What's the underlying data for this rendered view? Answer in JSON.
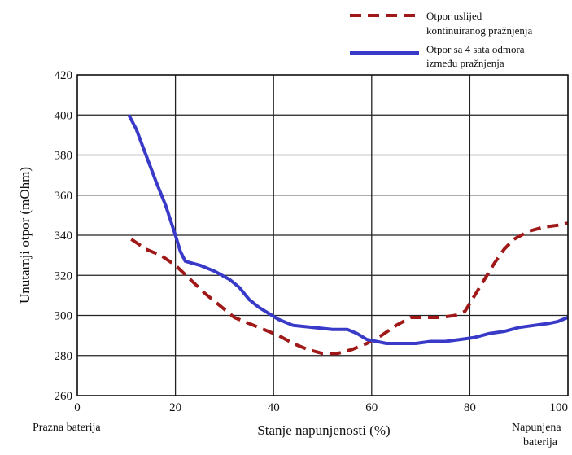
{
  "chart_data": {
    "type": "line",
    "title": "",
    "xlabel": "Stanje napunjenosti (%)",
    "ylabel": "Unutarnji otpor (mOhm)",
    "xlim": [
      0,
      100
    ],
    "ylim": [
      260,
      420
    ],
    "xticks": [
      0,
      20,
      40,
      60,
      80,
      100
    ],
    "yticks": [
      260,
      280,
      300,
      320,
      340,
      360,
      380,
      400,
      420
    ],
    "grid": true,
    "legend_position": "top-right",
    "x_end_labels": {
      "left": "Prazna baterija",
      "right_line1": "Napunjena",
      "right_line2": "baterija"
    },
    "series": [
      {
        "name_line1": "Otpor uslijed",
        "name_line2": "kontinuiranog pražnjenja",
        "style": "dashed",
        "color": "#a01818",
        "points": [
          [
            11,
            338
          ],
          [
            14,
            333
          ],
          [
            17,
            330
          ],
          [
            20,
            325
          ],
          [
            23,
            318
          ],
          [
            26,
            311
          ],
          [
            29,
            305
          ],
          [
            32,
            299
          ],
          [
            35,
            296
          ],
          [
            38,
            293
          ],
          [
            41,
            290
          ],
          [
            44,
            286
          ],
          [
            47,
            283
          ],
          [
            50,
            281
          ],
          [
            53,
            281
          ],
          [
            56,
            283
          ],
          [
            59,
            286
          ],
          [
            62,
            290
          ],
          [
            65,
            295
          ],
          [
            68,
            299
          ],
          [
            71,
            299
          ],
          [
            74,
            299
          ],
          [
            77,
            300
          ],
          [
            79,
            302
          ],
          [
            81,
            310
          ],
          [
            83,
            318
          ],
          [
            85,
            326
          ],
          [
            87,
            333
          ],
          [
            89,
            338
          ],
          [
            92,
            342
          ],
          [
            95,
            344
          ],
          [
            98,
            345
          ],
          [
            100,
            346
          ]
        ]
      },
      {
        "name_line1": "Otpor sa 4 sata odmora",
        "name_line2": "između pražnjenja",
        "style": "solid",
        "color": "#3a3ac8",
        "points": [
          [
            10.5,
            400
          ],
          [
            12,
            393
          ],
          [
            14,
            380
          ],
          [
            16,
            367
          ],
          [
            18,
            355
          ],
          [
            20,
            340
          ],
          [
            21,
            332
          ],
          [
            22,
            327
          ],
          [
            25,
            325
          ],
          [
            28,
            322
          ],
          [
            31,
            318
          ],
          [
            33,
            314
          ],
          [
            35,
            308
          ],
          [
            37,
            304
          ],
          [
            39,
            301
          ],
          [
            41,
            298
          ],
          [
            44,
            295
          ],
          [
            48,
            294
          ],
          [
            52,
            293
          ],
          [
            55,
            293
          ],
          [
            57,
            291
          ],
          [
            59,
            288
          ],
          [
            61,
            287
          ],
          [
            63,
            286
          ],
          [
            66,
            286
          ],
          [
            69,
            286
          ],
          [
            72,
            287
          ],
          [
            75,
            287
          ],
          [
            78,
            288
          ],
          [
            81,
            289
          ],
          [
            84,
            291
          ],
          [
            87,
            292
          ],
          [
            90,
            294
          ],
          [
            93,
            295
          ],
          [
            96,
            296
          ],
          [
            98,
            297
          ],
          [
            100,
            299
          ]
        ]
      }
    ]
  }
}
